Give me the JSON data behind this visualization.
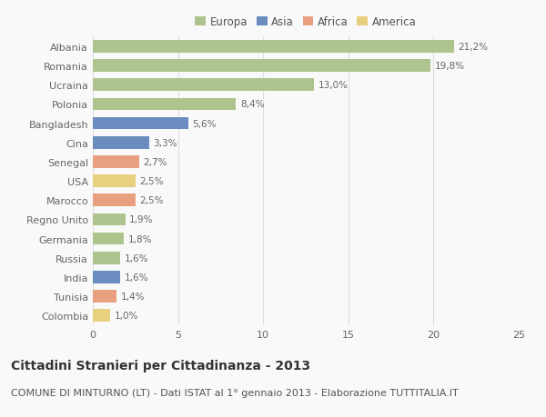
{
  "countries": [
    "Albania",
    "Romania",
    "Ucraina",
    "Polonia",
    "Bangladesh",
    "Cina",
    "Senegal",
    "USA",
    "Marocco",
    "Regno Unito",
    "Germania",
    "Russia",
    "India",
    "Tunisia",
    "Colombia"
  ],
  "values": [
    21.2,
    19.8,
    13.0,
    8.4,
    5.6,
    3.3,
    2.7,
    2.5,
    2.5,
    1.9,
    1.8,
    1.6,
    1.6,
    1.4,
    1.0
  ],
  "labels": [
    "21,2%",
    "19,8%",
    "13,0%",
    "8,4%",
    "5,6%",
    "3,3%",
    "2,7%",
    "2,5%",
    "2,5%",
    "1,9%",
    "1,8%",
    "1,6%",
    "1,6%",
    "1,4%",
    "1,0%"
  ],
  "continents": [
    "Europa",
    "Europa",
    "Europa",
    "Europa",
    "Asia",
    "Asia",
    "Africa",
    "America",
    "Africa",
    "Europa",
    "Europa",
    "Europa",
    "Asia",
    "Africa",
    "America"
  ],
  "colors": {
    "Europa": "#aec48e",
    "Asia": "#6b8cbf",
    "Africa": "#e8a080",
    "America": "#e8d080"
  },
  "xlim": [
    0,
    25
  ],
  "xticks": [
    0,
    5,
    10,
    15,
    20,
    25
  ],
  "title": "Cittadini Stranieri per Cittadinanza - 2013",
  "subtitle": "COMUNE DI MINTURNO (LT) - Dati ISTAT al 1° gennaio 2013 - Elaborazione TUTTITALIA.IT",
  "background_color": "#f9f9f9",
  "grid_color": "#dddddd",
  "bar_height": 0.65,
  "title_fontsize": 10,
  "subtitle_fontsize": 8,
  "label_fontsize": 7.5,
  "tick_fontsize": 8,
  "legend_fontsize": 8.5
}
